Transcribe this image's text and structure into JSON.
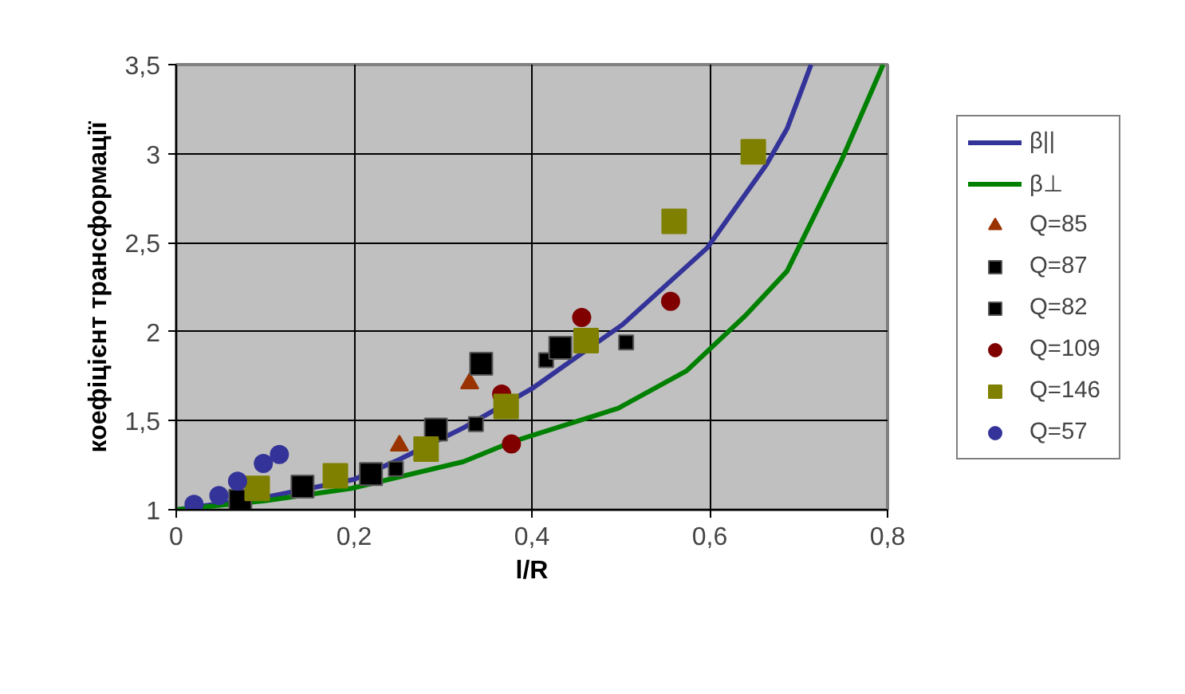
{
  "chart_data": {
    "type": "scatter",
    "xlabel": "l/R",
    "ylabel": "коефіцієнт трансформації",
    "xlim": [
      0,
      0.8
    ],
    "ylim": [
      1,
      3.5
    ],
    "xticks": [
      0,
      {
        "value": 0.2,
        "label": "0,2"
      },
      {
        "value": 0.4,
        "label": "0,4"
      },
      {
        "value": 0.6,
        "label": "0,6"
      },
      {
        "value": 0.8,
        "label": "0,8"
      }
    ],
    "yticks": [
      1,
      {
        "value": 1.5,
        "label": "1,5"
      },
      2,
      {
        "value": 2.5,
        "label": "2,5"
      },
      3,
      {
        "value": 3.5,
        "label": "3,5"
      }
    ],
    "grid": true,
    "legend": "right",
    "series": [
      {
        "name": "β||",
        "type": "line",
        "color": "#333399",
        "marker": "none",
        "x": [
          0,
          0.1,
          0.2,
          0.25,
          0.323,
          0.4,
          0.502,
          0.597,
          0.664,
          0.687,
          0.714
        ],
        "values": [
          1.0,
          1.07,
          1.17,
          1.28,
          1.46,
          1.68,
          2.04,
          2.47,
          2.94,
          3.14,
          3.5
        ]
      },
      {
        "name": "β⊥",
        "type": "line",
        "color": "#008000",
        "marker": "none",
        "x": [
          0,
          0.1,
          0.197,
          0.323,
          0.377,
          0.497,
          0.574,
          0.64,
          0.687,
          0.748,
          0.795
        ],
        "values": [
          1.0,
          1.05,
          1.12,
          1.27,
          1.38,
          1.57,
          1.78,
          2.09,
          2.34,
          2.96,
          3.5
        ]
      },
      {
        "name": "Q=85",
        "color": "#993300",
        "marker": "triangle",
        "x": [
          0.251,
          0.33
        ],
        "values": [
          1.36,
          1.71
        ]
      },
      {
        "name": "Q=87",
        "color": "#000000",
        "marker": "square",
        "x": [
          0.247,
          0.337,
          0.416,
          0.506
        ],
        "values": [
          1.23,
          1.48,
          1.84,
          1.94
        ]
      },
      {
        "name": "Q=82",
        "color": "#000000",
        "marker": "square",
        "x": [
          0.072,
          0.142,
          0.219,
          0.292,
          0.343,
          0.432
        ],
        "values": [
          1.05,
          1.13,
          1.2,
          1.45,
          1.82,
          1.91
        ]
      },
      {
        "name": "Q=109",
        "color": "#800000",
        "marker": "circle",
        "x": [
          0.366,
          0.377,
          0.456,
          0.556
        ],
        "values": [
          1.65,
          1.37,
          2.08,
          2.17
        ]
      },
      {
        "name": "Q=146",
        "color": "#808000",
        "marker": "square",
        "x": [
          0.091,
          0.179,
          0.281,
          0.371,
          0.461,
          0.56,
          0.649
        ],
        "values": [
          1.12,
          1.19,
          1.34,
          1.58,
          1.95,
          2.62,
          3.01
        ]
      },
      {
        "name": "Q=57",
        "color": "#333399",
        "marker": "circle",
        "x": [
          0.02,
          0.048,
          0.069,
          0.098,
          0.116
        ],
        "values": [
          1.03,
          1.08,
          1.16,
          1.26,
          1.31
        ]
      }
    ]
  }
}
